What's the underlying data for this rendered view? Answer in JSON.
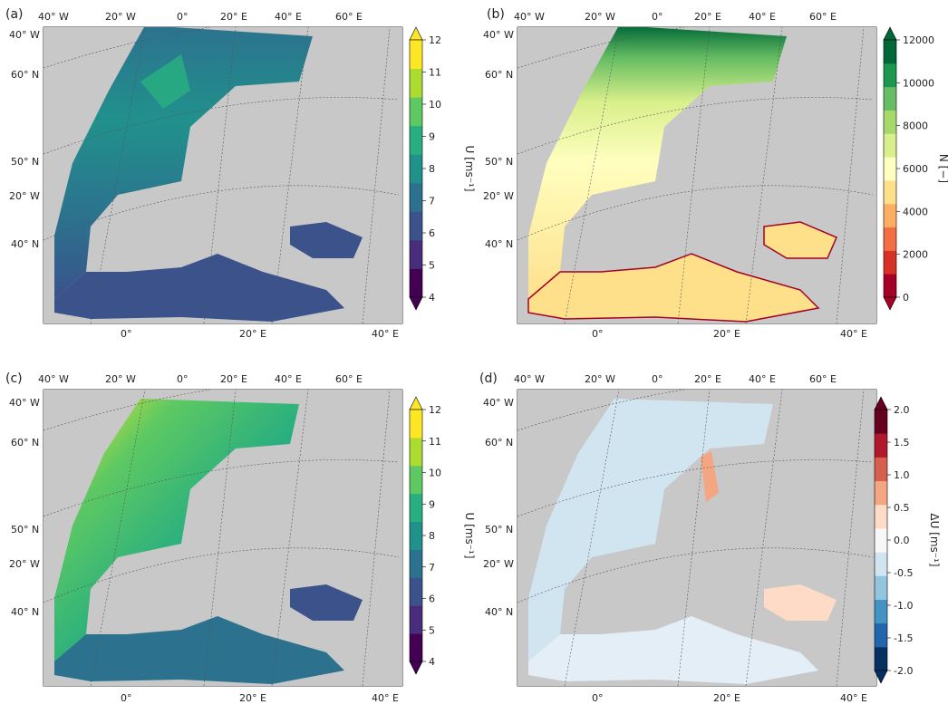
{
  "panels": [
    {
      "id": "a",
      "label": "(a)",
      "top_lons": [
        "40° W",
        "20° W",
        "0°",
        "20° E",
        "40° E",
        "60° E"
      ],
      "left_lats": [
        "40° W",
        "60° N",
        "50° N",
        "20° W",
        "40° N"
      ],
      "bottom_lons": [
        "0°",
        "20° E",
        "40° E"
      ],
      "colorbar": {
        "title": "U [ms⁻¹]",
        "ticks": [
          "4",
          "5",
          "6",
          "7",
          "8",
          "9",
          "10",
          "11",
          "12"
        ],
        "colors": [
          "#440154",
          "#472d7b",
          "#3b528b",
          "#2c728e",
          "#21918c",
          "#28ae80",
          "#5ec962",
          "#addc30",
          "#fde725"
        ]
      }
    },
    {
      "id": "b",
      "label": "(b)",
      "top_lons": [
        "40° W",
        "20° W",
        "0°",
        "20° E",
        "40° E",
        "60° E"
      ],
      "left_lats": [
        "40° W",
        "60° N",
        "50° N",
        "20° W",
        "40° N"
      ],
      "bottom_lons": [
        "0°",
        "20° E",
        "40° E"
      ],
      "colorbar": {
        "title": "N [−]",
        "ticks": [
          "0",
          "2000",
          "4000",
          "6000",
          "8000",
          "10000",
          "12000"
        ],
        "colors": [
          "#a50026",
          "#d73027",
          "#f46d43",
          "#fdae61",
          "#fee08b",
          "#ffffbf",
          "#d9ef8b",
          "#a6d96a",
          "#66bd63",
          "#1a9850",
          "#006837"
        ]
      }
    },
    {
      "id": "c",
      "label": "(c)",
      "top_lons": [
        "40° W",
        "20° W",
        "0°",
        "20° E",
        "40° E",
        "60° E"
      ],
      "left_lats": [
        "40° W",
        "60° N",
        "50° N",
        "20° W",
        "40° N"
      ],
      "bottom_lons": [
        "0°",
        "20° E",
        "40° E"
      ],
      "colorbar": {
        "title": "U [ms⁻¹]",
        "ticks": [
          "4",
          "5",
          "6",
          "7",
          "8",
          "9",
          "10",
          "11",
          "12"
        ],
        "colors": [
          "#440154",
          "#472d7b",
          "#3b528b",
          "#2c728e",
          "#21918c",
          "#28ae80",
          "#5ec962",
          "#addc30",
          "#fde725"
        ]
      }
    },
    {
      "id": "d",
      "label": "(d)",
      "top_lons": [
        "40° W",
        "20° W",
        "0°",
        "20° E",
        "40° E",
        "60° E"
      ],
      "left_lats": [
        "40° W",
        "60° N",
        "50° N",
        "20° W",
        "40° N"
      ],
      "bottom_lons": [
        "0°",
        "20° E",
        "40° E"
      ],
      "colorbar": {
        "title": "ΔU [ms⁻¹]",
        "ticks": [
          "-2.0",
          "-1.5",
          "-1.0",
          "-0.5",
          "0.0",
          "0.5",
          "1.0",
          "1.5",
          "2.0"
        ],
        "colors": [
          "#053061",
          "#2166ac",
          "#4393c3",
          "#92c5de",
          "#d1e5f0",
          "#f7f7f7",
          "#fddbc7",
          "#f4a582",
          "#d6604d",
          "#b2182b",
          "#67001f"
        ]
      }
    }
  ]
}
